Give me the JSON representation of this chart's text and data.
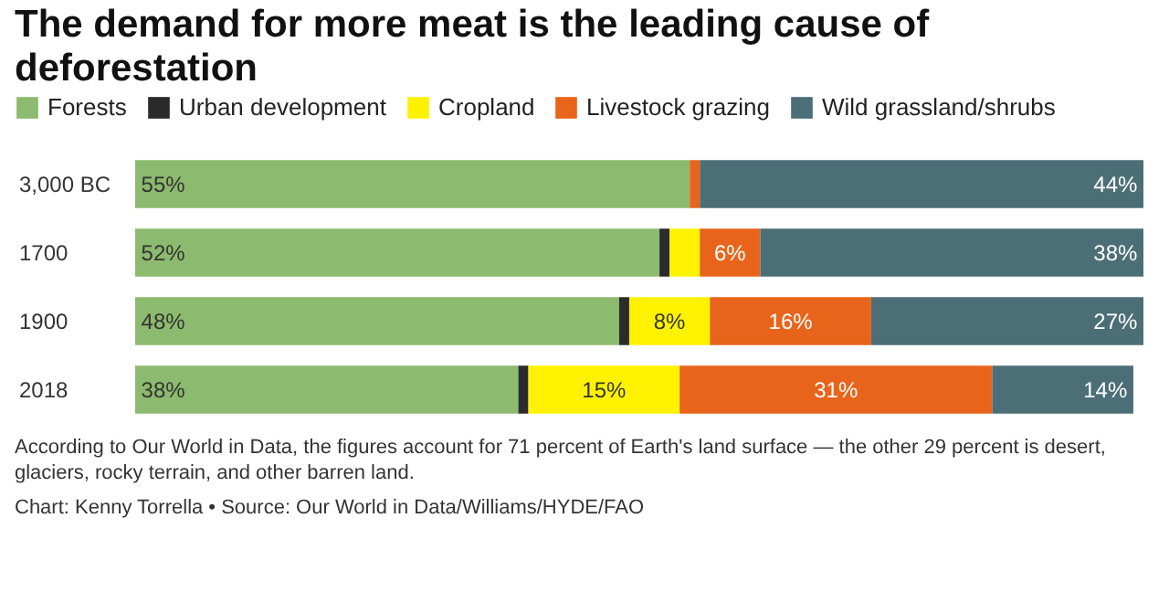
{
  "chart_data": {
    "type": "bar",
    "orientation": "horizontal",
    "stacked": true,
    "title": "The demand for more meat is the leading cause of deforestation",
    "categories": [
      "3,000 BC",
      "1700",
      "1900",
      "2018"
    ],
    "legend": "top",
    "series": [
      {
        "name": "Forests",
        "color": "#8cba6e",
        "values": [
          55,
          52,
          48,
          38
        ],
        "value_labels": [
          "55%",
          "52%",
          "48%",
          "38%"
        ]
      },
      {
        "name": "Urban development",
        "color": "#2b2b2b",
        "values": [
          0,
          1,
          1,
          1
        ],
        "value_labels": [
          null,
          null,
          null,
          null
        ]
      },
      {
        "name": "Cropland",
        "color": "#fff200",
        "values": [
          0,
          3,
          8,
          15
        ],
        "value_labels": [
          null,
          null,
          "8%",
          "15%"
        ]
      },
      {
        "name": "Livestock grazing",
        "color": "#e8641a",
        "values": [
          1,
          6,
          16,
          31
        ],
        "value_labels": [
          null,
          "6%",
          "16%",
          "31%"
        ]
      },
      {
        "name": "Wild grassland/shrubs",
        "color": "#4c6e76",
        "values": [
          44,
          38,
          27,
          14
        ],
        "value_labels": [
          "44%",
          "38%",
          "27%",
          "14%"
        ]
      }
    ],
    "annotations": [
      "According to Our World in Data, the figures account for 71 percent of Earth's land surface — the other 29 percent is desert, glaciers, rocky terrain, and other barren land.",
      "Chart: Kenny Torrella • Source: Our World in Data/Williams/HYDE/FAO"
    ]
  }
}
